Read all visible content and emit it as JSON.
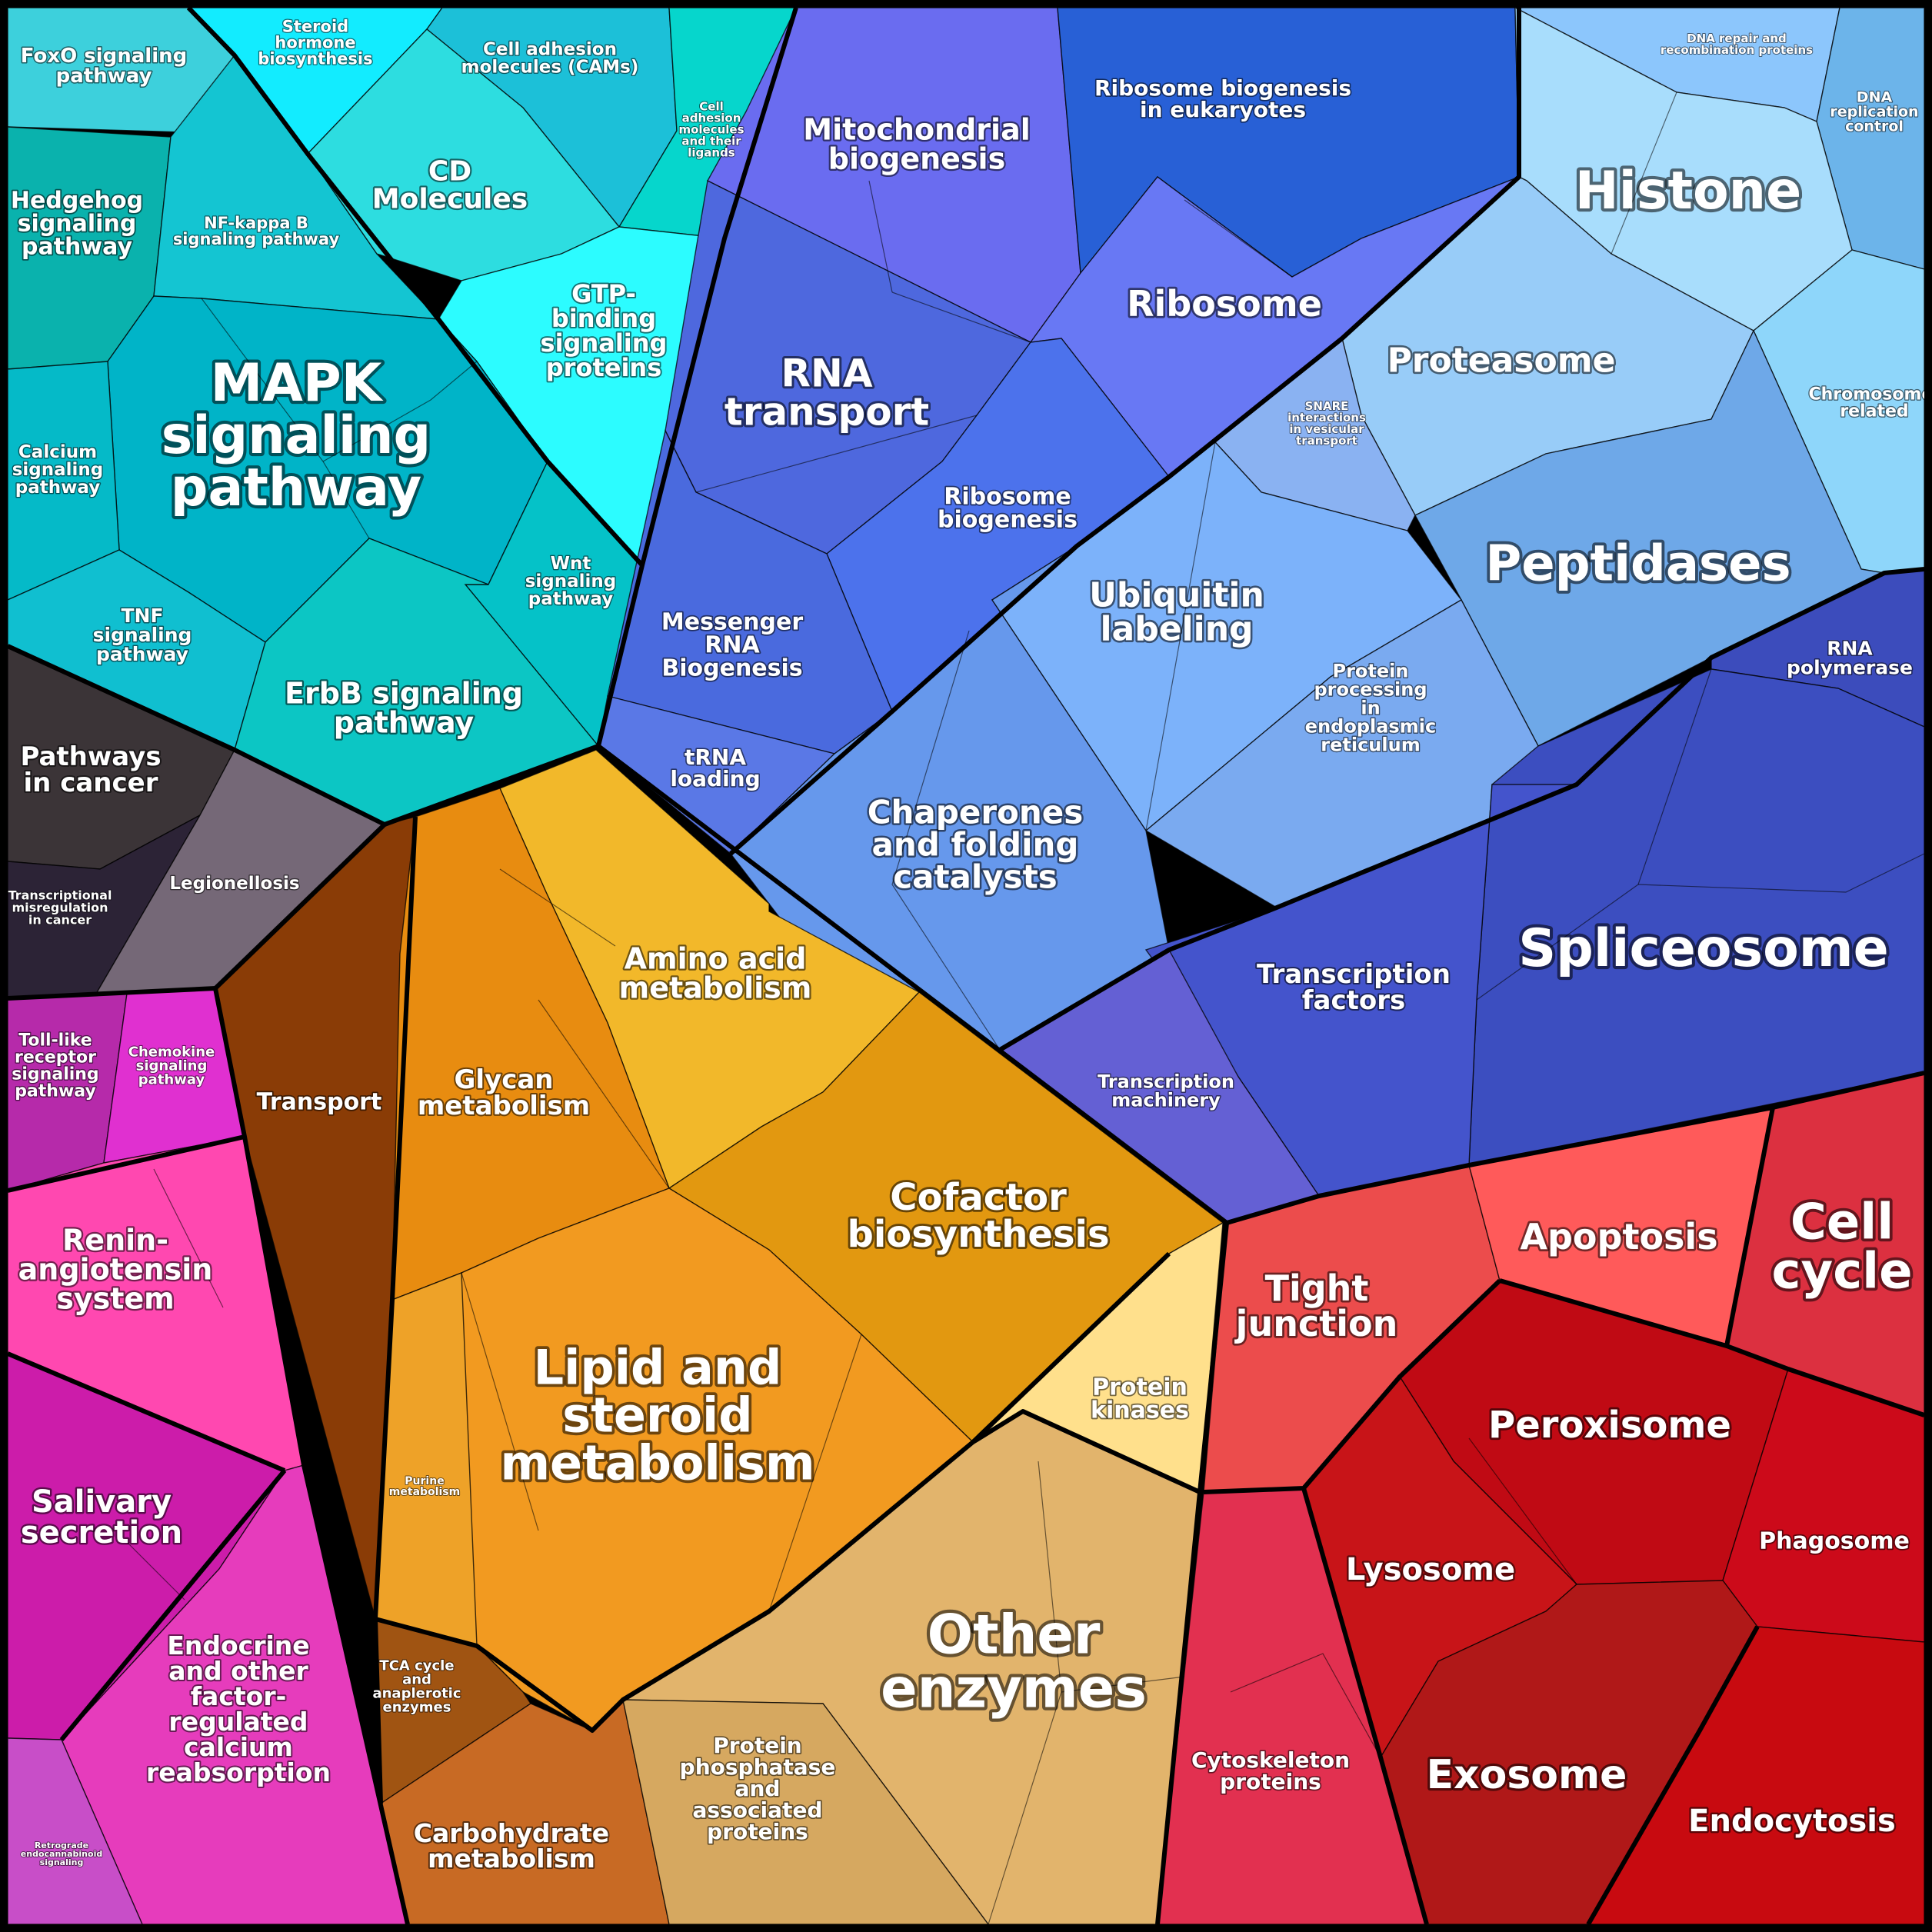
{
  "groups": {
    "signaling": {
      "color": "#0fc3d3"
    },
    "cancer": {
      "color": "#3a3236"
    },
    "immune": {
      "color": "#d62cc0"
    },
    "genetic": {
      "color": "#5f6fe8"
    },
    "nuclear": {
      "color": "#8fcdf6"
    },
    "metabolism": {
      "color": "#f0a020"
    },
    "cellular": {
      "color": "#d82a38"
    }
  },
  "labels": {
    "foxo": [
      "FoxO signaling",
      "pathway"
    ],
    "steroid_hormone": [
      "Steroid",
      "hormone",
      "biosynthesis"
    ],
    "cams": [
      "Cell adhesion",
      "molecules (CAMs)"
    ],
    "cams_ligands": [
      "Cell",
      "adhesion",
      "molecules",
      "and their",
      "ligands"
    ],
    "hedgehog": [
      "Hedgehog",
      "signaling",
      "pathway"
    ],
    "nfkb": [
      "NF-kappa B",
      "signaling pathway"
    ],
    "cd_molecules": [
      "CD",
      "Molecules"
    ],
    "gtp": [
      "GTP-",
      "binding",
      "signaling",
      "proteins"
    ],
    "mapk": [
      "MAPK",
      "signaling",
      "pathway"
    ],
    "calcium": [
      "Calcium",
      "signaling",
      "pathway"
    ],
    "wnt": [
      "Wnt",
      "signaling",
      "pathway"
    ],
    "tnf": [
      "TNF",
      "signaling",
      "pathway"
    ],
    "erbb": [
      "ErbB signaling",
      "pathway"
    ],
    "pathways_cancer": [
      "Pathways",
      "in cancer"
    ],
    "legionellosis": [
      "Legionellosis"
    ],
    "transcriptional_misreg": [
      "Transcriptional",
      "misregulation",
      "in cancer"
    ],
    "tolllike": [
      "Toll-like",
      "receptor",
      "signaling",
      "pathway"
    ],
    "chemokine": [
      "Chemokine",
      "signaling",
      "pathway"
    ],
    "renin": [
      "Renin-",
      "angiotensin",
      "system"
    ],
    "salivary": [
      "Salivary",
      "secretion"
    ],
    "endocrine": [
      "Endocrine",
      "and other",
      "factor-",
      "regulated",
      "calcium",
      "reabsorption"
    ],
    "retrograde": [
      "Retrograde",
      "endocannabinoid",
      "signaling"
    ],
    "mito": [
      "Mitochondrial",
      "biogenesis"
    ],
    "ribo_bio_euk": [
      "Ribosome biogenesis",
      "in eukaryotes"
    ],
    "ribosome": [
      "Ribosome"
    ],
    "rna_transport": [
      "RNA",
      "transport"
    ],
    "ribo_bio": [
      "Ribosome",
      "biogenesis"
    ],
    "mrna": [
      "Messenger",
      "RNA",
      "Biogenesis"
    ],
    "trna": [
      "tRNA",
      "loading"
    ],
    "dna_repair": [
      "DNA repair and",
      "recombination proteins"
    ],
    "dna_replication": [
      "DNA",
      "replication",
      "control"
    ],
    "histone": [
      "Histone"
    ],
    "proteasome": [
      "Proteasome"
    ],
    "chromosome": [
      "Chromosome-",
      "related"
    ],
    "snare": [
      "SNARE",
      "interactions",
      "in vesicular",
      "transport"
    ],
    "ubiquitin": [
      "Ubiquitin",
      "labeling"
    ],
    "peptidases": [
      "Peptidases"
    ],
    "rna_polymerase": [
      "RNA",
      "polymerase"
    ],
    "er_processing": [
      "Protein",
      "processing",
      "in",
      "endoplasmic",
      "reticulum"
    ],
    "chaperones": [
      "Chaperones",
      "and folding",
      "catalysts"
    ],
    "spliceosome": [
      "Spliceosome"
    ],
    "transcription_factors": [
      "Transcription",
      "factors"
    ],
    "transcription_machinery": [
      "Transcription",
      "machinery"
    ],
    "amino_acid": [
      "Amino acid",
      "metabolism"
    ],
    "transport": [
      "Transport"
    ],
    "glycan": [
      "Glycan",
      "metabolism"
    ],
    "cofactor": [
      "Cofactor",
      "biosynthesis"
    ],
    "protein_kinases": [
      "Protein",
      "kinases"
    ],
    "lipid": [
      "Lipid and",
      "steroid",
      "metabolism"
    ],
    "purine": [
      "Purine",
      "metabolism"
    ],
    "tca": [
      "TCA cycle",
      "and",
      "anaplerotic",
      "enzymes"
    ],
    "other_enzymes": [
      "Other",
      "enzymes"
    ],
    "carbohydrate": [
      "Carbohydrate",
      "metabolism"
    ],
    "phosphatase": [
      "Protein",
      "phosphatase",
      "and",
      "associated",
      "proteins"
    ],
    "apoptosis": [
      "Apoptosis"
    ],
    "cell_cycle": [
      "Cell",
      "cycle"
    ],
    "tight_junction": [
      "Tight",
      "junction"
    ],
    "peroxisome": [
      "Peroxisome"
    ],
    "phagosome": [
      "Phagosome"
    ],
    "lysosome": [
      "Lysosome"
    ],
    "cytoskeleton": [
      "Cytoskeleton",
      "proteins"
    ],
    "exosome": [
      "Exosome"
    ],
    "endocytosis": [
      "Endocytosis"
    ]
  }
}
